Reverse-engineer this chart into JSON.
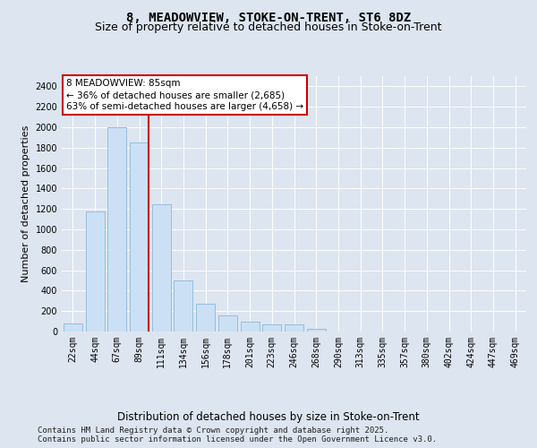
{
  "title_line1": "8, MEADOWVIEW, STOKE-ON-TRENT, ST6 8DZ",
  "title_line2": "Size of property relative to detached houses in Stoke-on-Trent",
  "xlabel": "Distribution of detached houses by size in Stoke-on-Trent",
  "ylabel": "Number of detached properties",
  "categories": [
    "22sqm",
    "44sqm",
    "67sqm",
    "89sqm",
    "111sqm",
    "134sqm",
    "156sqm",
    "178sqm",
    "201sqm",
    "223sqm",
    "246sqm",
    "268sqm",
    "290sqm",
    "313sqm",
    "335sqm",
    "357sqm",
    "380sqm",
    "402sqm",
    "424sqm",
    "447sqm",
    "469sqm"
  ],
  "values": [
    75,
    1175,
    2000,
    1850,
    1250,
    500,
    275,
    155,
    100,
    70,
    70,
    25,
    0,
    0,
    0,
    0,
    0,
    0,
    0,
    0,
    0
  ],
  "bar_color": "#cce0f5",
  "bar_edge_color": "#8ab8d8",
  "vline_x_index": 3,
  "vline_color": "#cc0000",
  "annotation_text": "8 MEADOWVIEW: 85sqm\n← 36% of detached houses are smaller (2,685)\n63% of semi-detached houses are larger (4,658) →",
  "annotation_box_facecolor": "#ffffff",
  "annotation_box_edgecolor": "#cc0000",
  "ylim": [
    0,
    2500
  ],
  "yticks": [
    0,
    200,
    400,
    600,
    800,
    1000,
    1200,
    1400,
    1600,
    1800,
    2000,
    2200,
    2400
  ],
  "background_color": "#dde5f0",
  "plot_background_color": "#dde5f0",
  "grid_color": "#ffffff",
  "footer_text": "Contains HM Land Registry data © Crown copyright and database right 2025.\nContains public sector information licensed under the Open Government Licence v3.0.",
  "title_fontsize": 10,
  "subtitle_fontsize": 9,
  "tick_fontsize": 7,
  "ylabel_fontsize": 8,
  "xlabel_fontsize": 8.5,
  "ann_fontsize": 7.5,
  "footer_fontsize": 6.5
}
